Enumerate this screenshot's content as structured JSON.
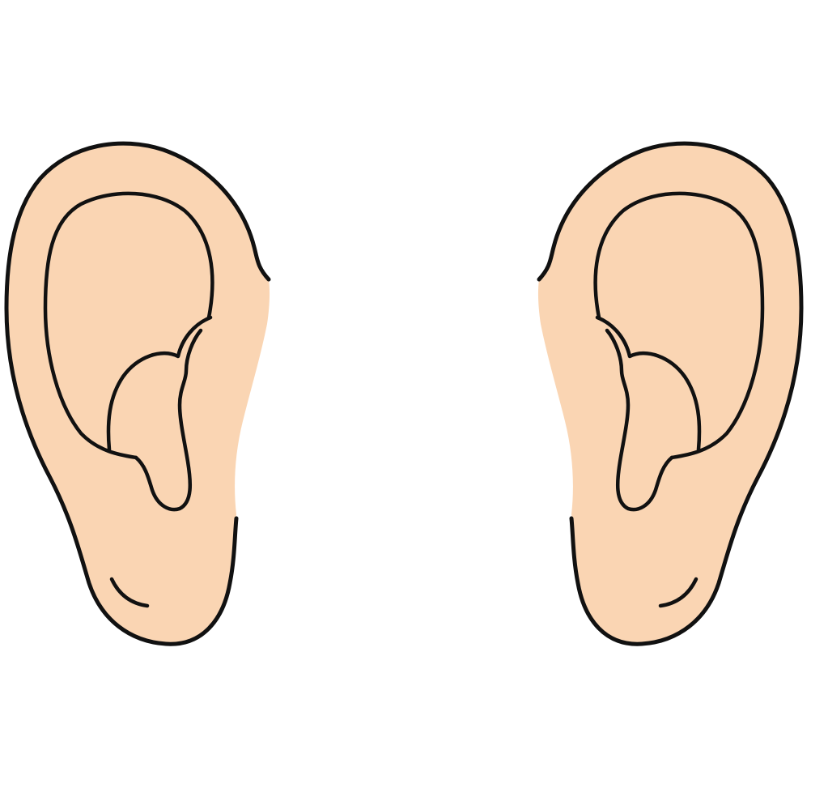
{
  "illustration": {
    "icon": "ears-clipart",
    "left_ear": {
      "icon": "left-ear-icon"
    },
    "right_ear": {
      "icon": "right-ear-icon"
    }
  },
  "colors": {
    "background": "#ffffff",
    "skin": "#fad5b3",
    "outline": "#111111"
  }
}
